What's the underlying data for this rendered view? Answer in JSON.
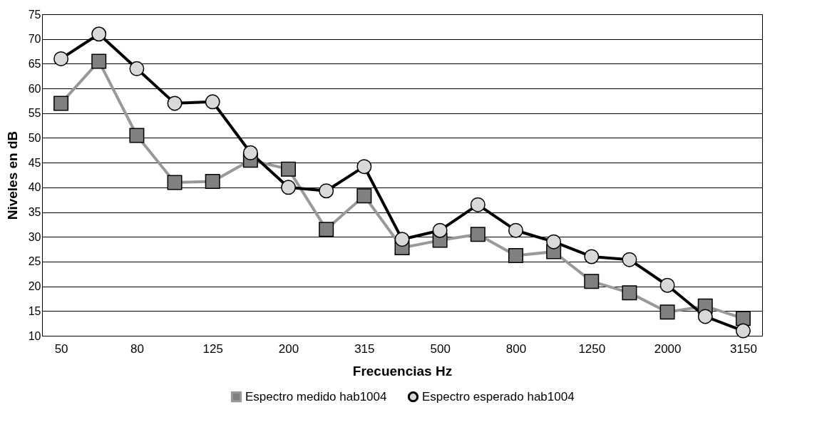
{
  "chart_data": {
    "type": "line",
    "xlabel": "Frecuencias Hz",
    "ylabel": "Niveles en dB",
    "categories": [
      "50",
      null,
      "80",
      null,
      "125",
      null,
      "200",
      null,
      "315",
      null,
      "500",
      null,
      "800",
      null,
      "1250",
      null,
      "2000",
      null,
      "3150"
    ],
    "series": [
      {
        "name": "Espectro medido hab1004",
        "color": "#999999",
        "marker": "square",
        "values": [
          57,
          65.5,
          50.5,
          41,
          41.2,
          45.5,
          43.7,
          31.5,
          38.3,
          27.8,
          29.3,
          30.5,
          26.2,
          27,
          21,
          18.7,
          14.8,
          16,
          13.5
        ]
      },
      {
        "name": "Espectro esperado hab1004",
        "color": "#000000",
        "marker": "circle",
        "values": [
          66,
          71,
          64,
          57,
          57.3,
          47,
          40,
          39.3,
          44.2,
          29.5,
          31.3,
          36.5,
          31.3,
          29,
          26,
          25.4,
          20.2,
          13.9,
          11
        ]
      }
    ],
    "ylim": [
      10,
      75
    ],
    "yticks": [
      10,
      15,
      20,
      25,
      30,
      35,
      40,
      45,
      50,
      55,
      60,
      65,
      70,
      75
    ],
    "grid": "y",
    "legend": "bottom"
  }
}
